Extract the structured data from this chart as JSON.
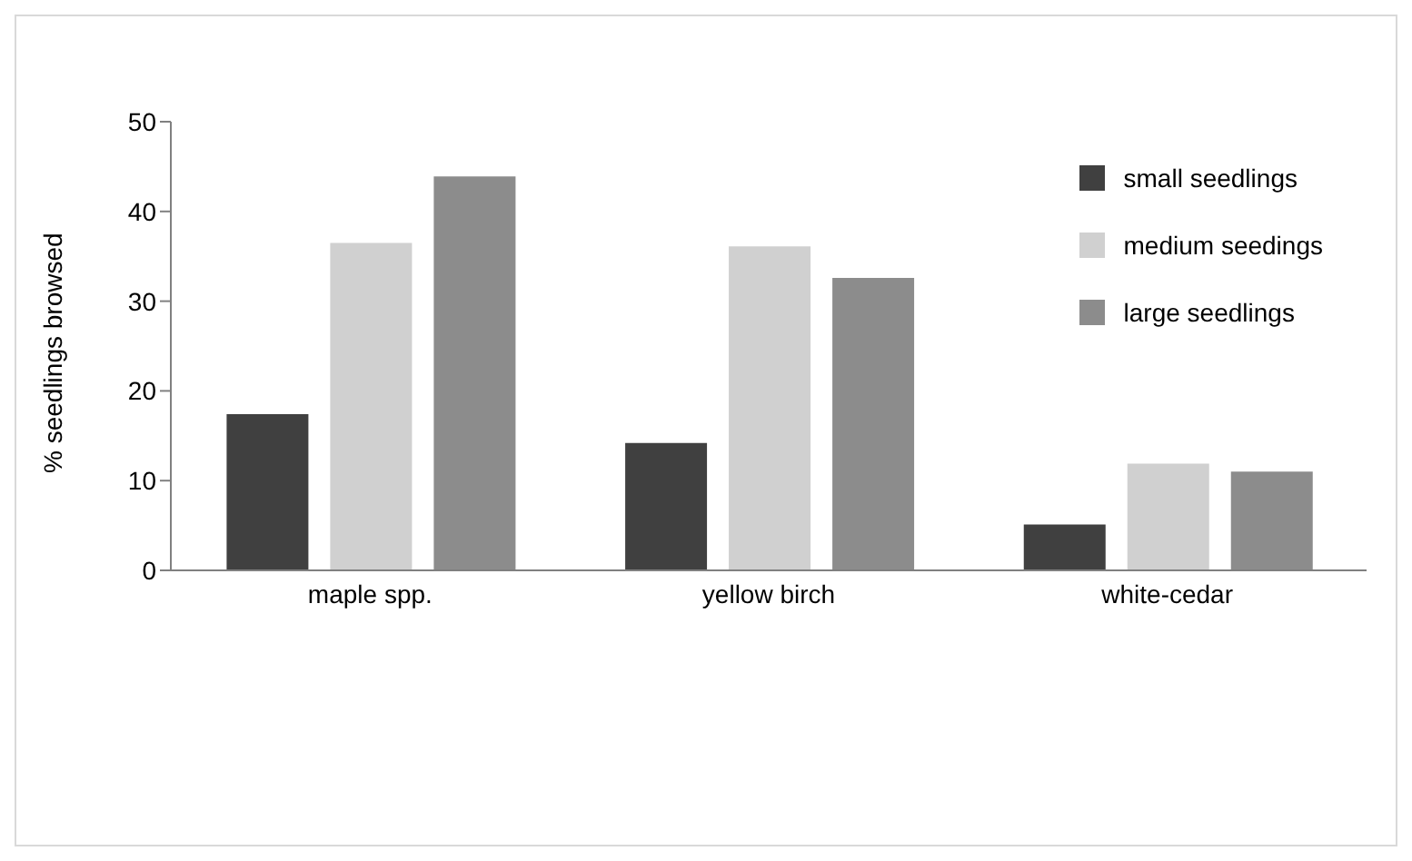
{
  "chart_data": {
    "type": "bar",
    "ylabel": "% seedlings browsed",
    "categories": [
      "maple spp.",
      "yellow birch",
      "white-cedar"
    ],
    "series": [
      {
        "name": "small seedlings",
        "color": "#404040",
        "values": [
          17.4,
          14.2,
          5.1
        ]
      },
      {
        "name": "medium seedings",
        "color": "#d0d0d0",
        "values": [
          36.5,
          36.1,
          11.9
        ]
      },
      {
        "name": "large seedlings",
        "color": "#8c8c8c",
        "values": [
          43.9,
          32.6,
          11.0
        ]
      }
    ],
    "ylim": [
      0,
      50
    ],
    "yticks": [
      0,
      10,
      20,
      30,
      40,
      50
    ],
    "grid": false,
    "legend": "top right"
  }
}
